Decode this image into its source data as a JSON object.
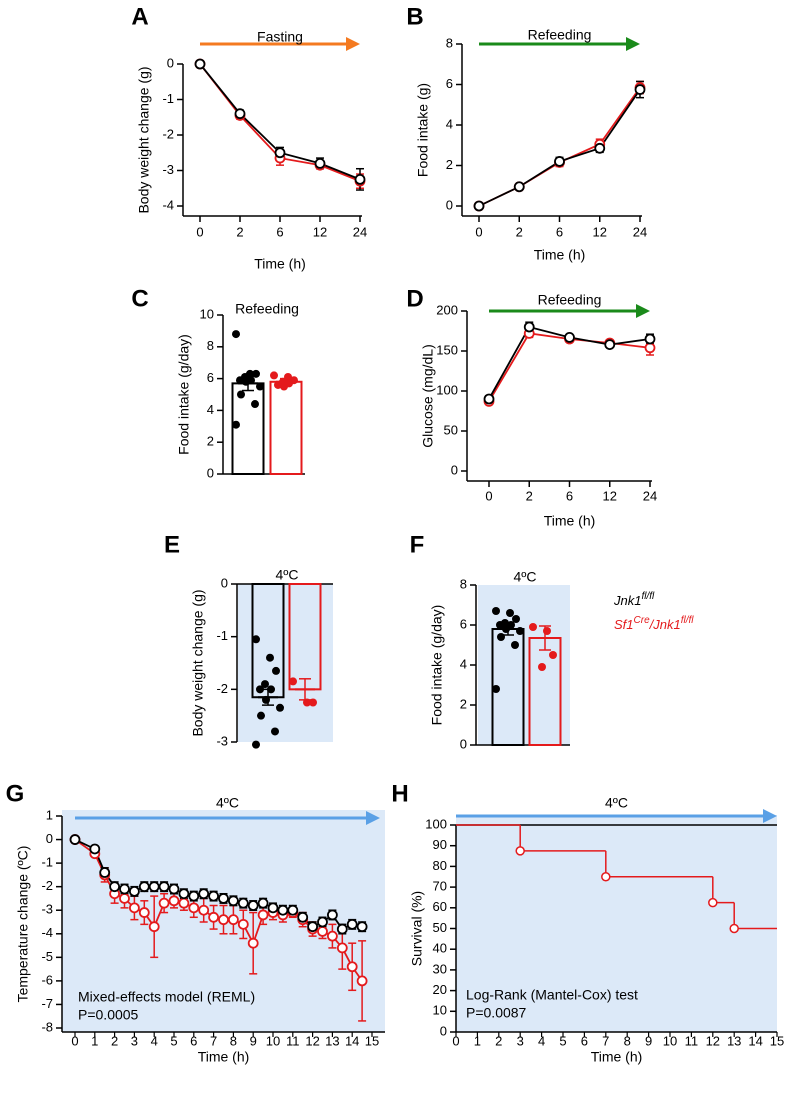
{
  "chart_data": [
    {
      "type": "line",
      "panel": "A",
      "title": "Fasting",
      "title_color": "#f47a20",
      "title_arrow": true,
      "ylabel": "Body weight change (g)",
      "xlabel": "Time (h)",
      "categories": [
        "0",
        "2",
        "6",
        "12",
        "24"
      ],
      "ylim": [
        -4,
        0
      ],
      "yticks": [
        0,
        -1,
        -2,
        -3,
        -4
      ],
      "series": [
        {
          "color": "#000000",
          "values": [
            0,
            -1.4,
            -2.5,
            -2.8,
            -3.25
          ],
          "errors": [
            0.05,
            0.1,
            0.15,
            0.15,
            0.3
          ]
        },
        {
          "color": "#e41a1c",
          "values": [
            0,
            -1.45,
            -2.65,
            -2.85,
            -3.3
          ],
          "errors": [
            0.05,
            0.1,
            0.2,
            0.1,
            0.2
          ]
        }
      ]
    },
    {
      "type": "line",
      "panel": "B",
      "title": "Refeeding",
      "title_color": "#1a8a1a",
      "title_arrow": true,
      "ylabel": "Food intake  (g)",
      "xlabel": "Time (h)",
      "categories": [
        "0",
        "2",
        "6",
        "12",
        "24"
      ],
      "ylim": [
        0,
        8
      ],
      "yticks": [
        0,
        2,
        4,
        6,
        8
      ],
      "series": [
        {
          "color": "#000000",
          "values": [
            0,
            0.95,
            2.2,
            2.85,
            5.75
          ],
          "errors": [
            0.05,
            0.1,
            0.2,
            0.2,
            0.4
          ]
        },
        {
          "color": "#e41a1c",
          "values": [
            0,
            0.95,
            2.15,
            3.05,
            5.85
          ],
          "errors": [
            0.05,
            0.1,
            0.2,
            0.25,
            0.3
          ]
        }
      ]
    },
    {
      "type": "bar",
      "panel": "C",
      "title": "Refeeding",
      "title_color": "#2e7d52",
      "title_arrow": false,
      "ylabel": "Food intake (g/day)",
      "ylim": [
        0,
        10
      ],
      "yticks": [
        0,
        2,
        4,
        6,
        8,
        10
      ],
      "series": [
        {
          "color": "#000000",
          "values": [
            5.7
          ],
          "errors": [
            0.45
          ],
          "points": [
            8.8,
            6.3,
            6.3,
            6.1,
            5.9,
            5.9,
            5.8,
            5.5,
            5.0,
            4.4,
            3.1
          ]
        },
        {
          "color": "#e41a1c",
          "values": [
            5.8
          ],
          "errors": [
            0.2
          ],
          "points": [
            6.2,
            6.1,
            5.9,
            5.8,
            5.7,
            5.6,
            5.5
          ]
        }
      ]
    },
    {
      "type": "line",
      "panel": "D",
      "title": "Refeeding",
      "title_color": "#1a8a1a",
      "title_arrow": true,
      "ylabel": "Glucose (mg/dL)",
      "xlabel": "Time (h)",
      "categories": [
        "0",
        "2",
        "6",
        "12",
        "24"
      ],
      "ylim": [
        0,
        200
      ],
      "yticks": [
        0,
        50,
        100,
        150,
        200
      ],
      "series": [
        {
          "color": "#000000",
          "values": [
            90,
            180,
            167,
            158,
            165
          ],
          "errors": [
            4,
            6,
            3,
            3,
            6
          ]
        },
        {
          "color": "#e41a1c",
          "values": [
            87,
            172,
            165,
            160,
            154
          ],
          "errors": [
            3,
            5,
            4,
            3,
            9
          ]
        }
      ]
    },
    {
      "type": "bar",
      "panel": "E",
      "title": "4ºC",
      "title_color": "#5aa0e6",
      "title_arrow": false,
      "background": "#dce9f8",
      "ylabel": "Body weight change (g)",
      "ylim": [
        -3,
        0
      ],
      "yticks": [
        0,
        -1,
        -2,
        -3
      ],
      "series": [
        {
          "color": "#000000",
          "values": [
            -2.15
          ],
          "errors": [
            0.15
          ],
          "points": [
            -1.05,
            -1.4,
            -1.65,
            -1.9,
            -2.0,
            -2.0,
            -2.2,
            -2.35,
            -2.5,
            -2.8,
            -3.05
          ]
        },
        {
          "color": "#e41a1c",
          "values": [
            -2.0
          ],
          "errors": [
            0.2
          ],
          "points": [
            -1.85,
            -2.25,
            -2.25
          ]
        }
      ]
    },
    {
      "type": "bar",
      "panel": "F",
      "title": "4ºC",
      "title_color": "#5aa0e6",
      "title_arrow": false,
      "background": "#dce9f8",
      "ylabel": "Food intake (g/day)",
      "ylim": [
        0,
        8
      ],
      "yticks": [
        0,
        2,
        4,
        6,
        8
      ],
      "series": [
        {
          "color": "#000000",
          "values": [
            5.8
          ],
          "errors": [
            0.3
          ],
          "points": [
            6.7,
            6.6,
            6.3,
            6.1,
            6.0,
            6.0,
            5.8,
            5.7,
            5.4,
            5.0,
            2.8
          ]
        },
        {
          "color": "#e41a1c",
          "values": [
            5.35
          ],
          "errors": [
            0.6
          ],
          "points": [
            5.9,
            5.7,
            4.5,
            3.9
          ]
        }
      ]
    },
    {
      "type": "line",
      "panel": "G",
      "title": "4ºC",
      "title_color": "#5aa0e6",
      "title_arrow": true,
      "background": "#dce9f8",
      "ylabel": "Temperature change (ºC)",
      "xlabel": "Time (h)",
      "annotations": [
        "Mixed-effects model (REML)",
        "P=0.0005"
      ],
      "x": [
        0,
        1,
        1.5,
        2,
        2.5,
        3,
        3.5,
        4,
        4.5,
        5,
        5.5,
        6,
        6.5,
        7,
        7.5,
        8,
        8.5,
        9,
        9.5,
        10,
        10.5,
        11,
        11.5,
        12,
        12.5,
        13,
        13.5,
        14,
        14.5
      ],
      "xlim": [
        0,
        15
      ],
      "xticks": [
        0,
        1,
        2,
        3,
        4,
        5,
        6,
        7,
        8,
        9,
        10,
        11,
        12,
        13,
        14,
        15
      ],
      "ylim": [
        -8,
        1
      ],
      "yticks": [
        1,
        0,
        -1,
        -2,
        -3,
        -4,
        -5,
        -6,
        -7,
        -8
      ],
      "series": [
        {
          "color": "#000000",
          "values": [
            0,
            -0.4,
            -1.4,
            -2.0,
            -2.1,
            -2.2,
            -2.0,
            -2.0,
            -2.0,
            -2.1,
            -2.3,
            -2.4,
            -2.3,
            -2.4,
            -2.5,
            -2.6,
            -2.7,
            -2.8,
            -2.7,
            -2.9,
            -3.0,
            -3.0,
            -3.3,
            -3.7,
            -3.5,
            -3.2,
            -3.8,
            -3.6,
            -3.7
          ],
          "errors": [
            0,
            0.1,
            0.2,
            0.2,
            0.2,
            0.2,
            0.2,
            0.2,
            0.2,
            0.2,
            0.2,
            0.2,
            0.2,
            0.2,
            0.2,
            0.2,
            0.2,
            0.2,
            0.2,
            0.2,
            0.2,
            0.2,
            0.2,
            0.2,
            0.2,
            0.2,
            0.2,
            0.2,
            0.2
          ]
        },
        {
          "color": "#e41a1c",
          "values": [
            0,
            -0.6,
            -1.5,
            -2.3,
            -2.5,
            -2.9,
            -3.1,
            -3.7,
            -2.7,
            -2.6,
            -2.7,
            -2.9,
            -3.0,
            -3.3,
            -3.4,
            -3.4,
            -3.6,
            -4.4,
            -3.2,
            -3.1,
            -3.2,
            -3.1,
            -3.4,
            -3.8,
            -3.9,
            -4.1,
            -4.6,
            -5.4,
            -6.0
          ],
          "errors": [
            0,
            0.1,
            0.3,
            0.4,
            0.4,
            0.5,
            0.5,
            1.3,
            0.4,
            0.3,
            0.3,
            0.4,
            0.5,
            0.5,
            0.6,
            0.6,
            0.6,
            1.3,
            0.4,
            0.3,
            0.3,
            0.2,
            0.3,
            0.3,
            0.3,
            0.5,
            0.9,
            1.0,
            1.7
          ]
        }
      ]
    },
    {
      "type": "step",
      "panel": "H",
      "title": "4ºC",
      "title_color": "#5aa0e6",
      "title_arrow": true,
      "background": "#dce9f8",
      "ylabel": "Survival (%)",
      "xlabel": "Time (h)",
      "annotations": [
        "Log-Rank (Mantel-Cox) test",
        "P=0.0087"
      ],
      "xlim": [
        0,
        15
      ],
      "xticks": [
        0,
        1,
        2,
        3,
        4,
        5,
        6,
        7,
        8,
        9,
        10,
        11,
        12,
        13,
        14,
        15
      ],
      "ylim": [
        0,
        100
      ],
      "yticks": [
        0,
        10,
        20,
        30,
        40,
        50,
        60,
        70,
        80,
        90,
        100
      ],
      "series": [
        {
          "color": "#000000",
          "markers": false,
          "x": [
            0,
            15
          ],
          "values": [
            100,
            100
          ]
        },
        {
          "color": "#e41a1c",
          "markers": true,
          "x": [
            0,
            3,
            7,
            12,
            13
          ],
          "values": [
            100,
            87.5,
            75,
            62.5,
            50
          ]
        }
      ]
    }
  ],
  "legend": {
    "entries": [
      {
        "color": "#000000",
        "parts": [
          "Jnk1",
          "fl/fl"
        ]
      },
      {
        "color": "#e41a1c",
        "parts": [
          "Sf1",
          "Cre",
          "/Jnk1",
          "fl/fl"
        ]
      }
    ]
  }
}
